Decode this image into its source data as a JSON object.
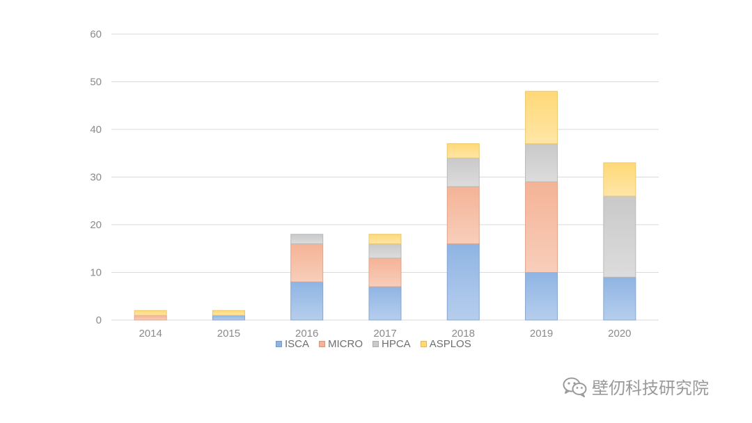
{
  "chart_data": {
    "type": "bar",
    "stacked": true,
    "categories": [
      "2014",
      "2015",
      "2016",
      "2017",
      "2018",
      "2019",
      "2020"
    ],
    "series": [
      {
        "name": "ISCA",
        "values": [
          0,
          1,
          8,
          7,
          16,
          10,
          9
        ],
        "color": "#8fb4e3"
      },
      {
        "name": "MICRO",
        "values": [
          1,
          0,
          8,
          6,
          12,
          19,
          0
        ],
        "color": "#f4b396"
      },
      {
        "name": "HPCA",
        "values": [
          0,
          0,
          2,
          3,
          6,
          8,
          17
        ],
        "color": "#c9c9c9"
      },
      {
        "name": "ASPLOS",
        "values": [
          1,
          1,
          0,
          2,
          3,
          11,
          7
        ],
        "color": "#ffd978"
      }
    ],
    "ylim": [
      0,
      60
    ],
    "yticks": [
      0,
      10,
      20,
      30,
      40,
      50,
      60
    ],
    "grid": true,
    "legend": "bottom",
    "title": "",
    "xlabel": "",
    "ylabel": ""
  },
  "watermark": {
    "text": "壁仞科技研究院",
    "icon": "wechat-icon"
  }
}
